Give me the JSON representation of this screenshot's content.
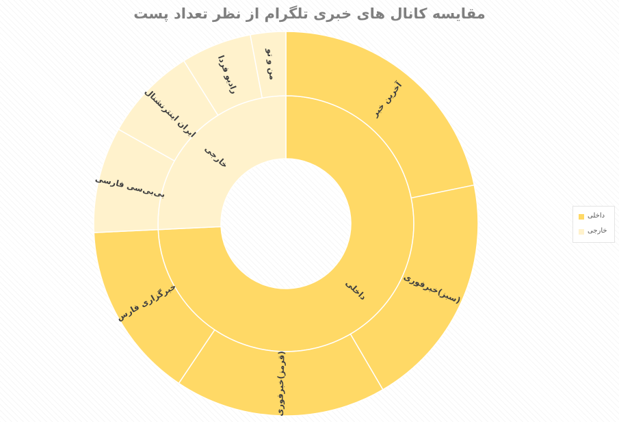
{
  "chart_data": {
    "type": "sunburst",
    "title": "مقایسه کانال های خبری تلگرام از نظر تعداد پست",
    "groups": [
      {
        "name": "داخلی",
        "color": "#FFD966",
        "children": [
          {
            "name": "آخرین خبر",
            "value": 22
          },
          {
            "name": "(سبز)خبرفوری",
            "value": 20
          },
          {
            "name": "(قرمز)خبرفوری",
            "value": 18
          },
          {
            "name": "خبرگزاری فارس",
            "value": 15
          }
        ]
      },
      {
        "name": "خارجی",
        "color": "#FFF2CC",
        "children": [
          {
            "name": "بی‌بی‌سی فارسی",
            "value": 9
          },
          {
            "name": "ایران اینترنشنال",
            "value": 8
          },
          {
            "name": "رادیو فردا",
            "value": 6
          },
          {
            "name": "من و تو",
            "value": 3
          }
        ]
      }
    ],
    "legend": {
      "position": "right",
      "items": [
        {
          "label": "داخلی",
          "color": "#FFD966"
        },
        {
          "label": "خارجی",
          "color": "#FFF2CC"
        }
      ]
    }
  }
}
